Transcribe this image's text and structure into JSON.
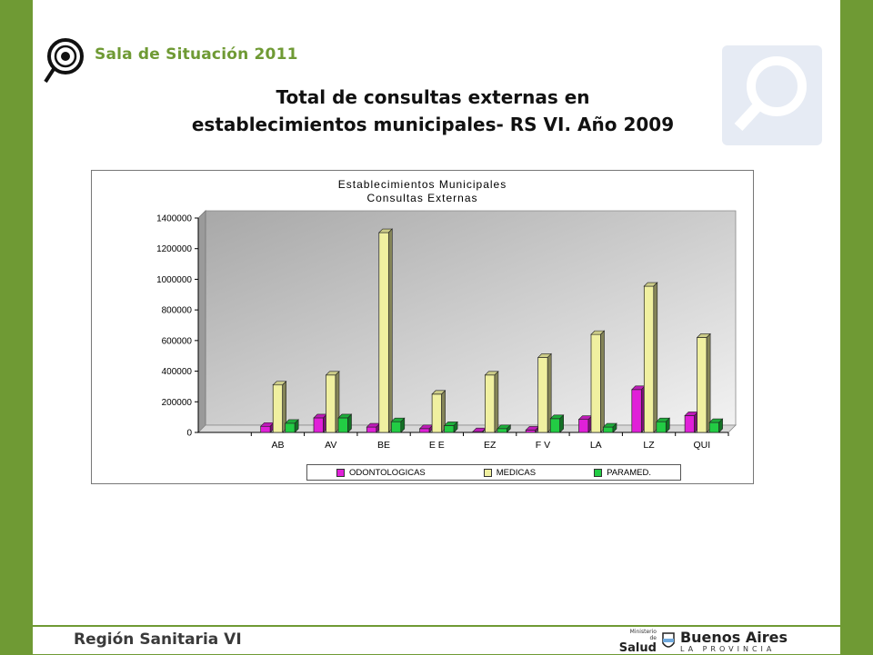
{
  "header": {
    "brand": "Sala de Situación 2011"
  },
  "slide_title_line1": "Total de consultas externas en",
  "slide_title_line2": "establecimientos municipales- RS VI. Año 2009",
  "chart_data": {
    "type": "bar",
    "title_line1": "Establecimientos Municipales",
    "title_line2": "Consultas Externas",
    "categories": [
      "AB",
      "AV",
      "BE",
      "E E",
      "EZ",
      "F V",
      "LA",
      "LZ",
      "QUI"
    ],
    "series": [
      {
        "name": "ODONTOLOGICAS",
        "color": "#e020d8",
        "values": [
          40000,
          95000,
          35000,
          25000,
          5000,
          15000,
          85000,
          280000,
          110000
        ]
      },
      {
        "name": "MEDICAS",
        "color": "#f0f0a0",
        "values": [
          310000,
          375000,
          1305000,
          250000,
          375000,
          490000,
          640000,
          955000,
          620000
        ]
      },
      {
        "name": "PARAMED.",
        "color": "#22cc44",
        "values": [
          60000,
          95000,
          70000,
          45000,
          25000,
          90000,
          35000,
          70000,
          65000
        ]
      }
    ],
    "yticks": [
      "1400000",
      "1200000",
      "1000000",
      "800000",
      "600000",
      "400000",
      "200000",
      "0"
    ],
    "ylim": [
      0,
      1400000
    ],
    "legend_position": "bottom"
  },
  "footer": {
    "region": "Región Sanitaria VI",
    "ministry_line1": "Ministerio",
    "ministry_line2": "de",
    "ministry_name": "Salud",
    "province_title": "Buenos Aires",
    "province_sub": "LA PROVINCIA"
  },
  "colors": {
    "frame": "#6f9a34",
    "brand": "#6f9a34"
  }
}
